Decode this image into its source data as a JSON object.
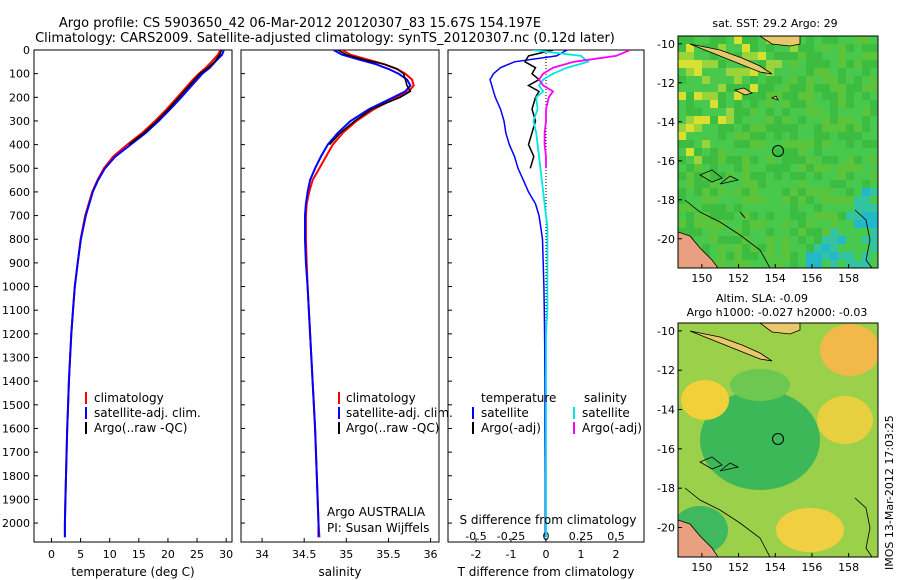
{
  "title_line1": "Argo profile: CS 5903650_42 06-Mar-2012 20120307_83 15.67S 154.197E",
  "title_line2": "Climatology: CARS2009. Satellite-adjusted climatology: synTS_20120307.nc (0.12d later)",
  "side_text": "IMOS 13-Mar-2012 17:03:25",
  "colors": {
    "climatology": "#ff0000",
    "satellite": "#0000ff",
    "argo": "#000000",
    "sal_satellite": "#00e5e5",
    "sal_argo": "#ff00ff"
  },
  "depth_axis": {
    "ticks": [
      "0",
      "100",
      "200",
      "300",
      "400",
      "500",
      "600",
      "700",
      "800",
      "900",
      "1000",
      "1100",
      "1200",
      "1300",
      "1400",
      "1500",
      "1600",
      "1700",
      "1800",
      "1900",
      "2000"
    ],
    "ylim": [
      0,
      2080
    ]
  },
  "panel_temp": {
    "xlabel": "temperature (deg C)",
    "xticks": [
      "0",
      "5",
      "10",
      "15",
      "20",
      "25",
      "30"
    ],
    "xlim": [
      -3,
      31
    ],
    "legend": [
      "climatology",
      "satellite-adj. clim.",
      "Argo(..raw -QC)"
    ],
    "chart_data": {
      "type": "line",
      "depth": [
        0,
        20,
        50,
        75,
        100,
        125,
        150,
        175,
        200,
        250,
        300,
        350,
        400,
        450,
        500,
        550,
        600,
        700,
        800,
        900,
        1000,
        1100,
        1200,
        1300,
        1400,
        1500,
        1600,
        1700,
        1800,
        1900,
        2000,
        2060
      ],
      "series": [
        {
          "name": "climatology",
          "values": [
            29.0,
            28.6,
            27.5,
            26.5,
            25.3,
            24.3,
            23.4,
            22.5,
            21.6,
            19.8,
            17.8,
            15.6,
            13.0,
            10.6,
            9.0,
            7.9,
            7.0,
            5.8,
            5.0,
            4.5,
            4.0,
            3.7,
            3.4,
            3.2,
            3.0,
            2.85,
            2.7,
            2.6,
            2.5,
            2.4,
            2.3,
            2.3
          ]
        },
        {
          "name": "satellite-adj. clim.",
          "values": [
            29.6,
            29.3,
            28.1,
            27.2,
            25.9,
            25.0,
            24.1,
            23.2,
            22.3,
            20.4,
            18.4,
            16.2,
            13.6,
            11.0,
            9.2,
            8.0,
            7.1,
            5.9,
            5.05,
            4.5,
            4.0,
            3.7,
            3.4,
            3.2,
            3.0,
            2.85,
            2.7,
            2.6,
            2.5,
            2.4,
            2.3,
            2.3
          ]
        },
        {
          "name": "Argo(..raw -QC)",
          "values": [
            29.2,
            28.9,
            28.0,
            26.9,
            25.5,
            24.6,
            23.7,
            22.8,
            21.9,
            20.1,
            18.1,
            15.9,
            13.3,
            null,
            null,
            null,
            null,
            null,
            null,
            null,
            null,
            null,
            null,
            null,
            null,
            null,
            null,
            null,
            null,
            null,
            null,
            null
          ]
        }
      ]
    }
  },
  "panel_sal": {
    "xlabel": "salinity",
    "xticks": [
      "34",
      "34.5",
      "35",
      "35.5",
      "36"
    ],
    "xlim": [
      33.75,
      36.1
    ],
    "legend": [
      "climatology",
      "satellite-adj. clim.",
      "Argo(..raw -QC)"
    ],
    "annotation1": "Argo AUSTRALIA",
    "annotation2": "PI: Susan Wijffels",
    "chart_data": {
      "type": "line",
      "depth": [
        0,
        20,
        40,
        60,
        80,
        100,
        125,
        150,
        175,
        200,
        250,
        300,
        350,
        400,
        450,
        500,
        550,
        600,
        650,
        700,
        800,
        900,
        1000,
        1200,
        1400,
        1600,
        1800,
        2000,
        2060
      ],
      "series": [
        {
          "name": "climatology",
          "values": [
            34.95,
            35.05,
            35.25,
            35.45,
            35.6,
            35.7,
            35.78,
            35.8,
            35.74,
            35.6,
            35.33,
            35.12,
            34.96,
            34.84,
            34.76,
            34.68,
            34.6,
            34.56,
            34.53,
            34.52,
            34.52,
            34.53,
            34.54,
            34.57,
            34.6,
            34.63,
            34.65,
            34.67,
            34.68
          ]
        },
        {
          "name": "satellite-adj. clim.",
          "values": [
            34.85,
            34.95,
            35.15,
            35.35,
            35.5,
            35.62,
            35.72,
            35.76,
            35.7,
            35.56,
            35.27,
            35.05,
            34.9,
            34.78,
            34.7,
            34.63,
            34.57,
            34.54,
            34.52,
            34.51,
            34.51,
            34.52,
            34.54,
            34.57,
            34.6,
            34.63,
            34.65,
            34.67,
            34.67
          ]
        },
        {
          "name": "Argo(..raw -QC)",
          "values": [
            34.9,
            35.0,
            35.2,
            35.45,
            35.6,
            35.68,
            35.7,
            35.72,
            35.76,
            35.64,
            35.3,
            35.1,
            34.93,
            34.8,
            null,
            null,
            null,
            null,
            null,
            null,
            null,
            null,
            null,
            null,
            null,
            null,
            null,
            null,
            null
          ]
        }
      ]
    }
  },
  "panel_diff": {
    "xlabel": "T difference from climatology",
    "s_label": "S difference from climatology",
    "xticks_t": [
      "-2",
      "-1",
      "0",
      "1",
      "2"
    ],
    "xticks_s": [
      "-0.5",
      "-0.25",
      "0",
      "0.25",
      "0.5"
    ],
    "xlim": [
      -2.8,
      2.8
    ],
    "legend_t_title": "temperature",
    "legend_s_title": "salinity",
    "legend_t": [
      "satellite",
      "Argo(-adj)"
    ],
    "legend_s": [
      "satellite",
      "Argo(-adj)"
    ],
    "chart_data": {
      "type": "line",
      "depth": [
        0,
        25,
        50,
        75,
        100,
        125,
        150,
        175,
        200,
        250,
        300,
        350,
        400,
        450,
        500,
        550,
        600,
        650,
        700,
        750,
        800,
        900,
        1000,
        1100,
        1200,
        1400,
        1600,
        1800,
        2000,
        2060
      ],
      "series": [
        {
          "name": "T satellite",
          "values": [
            0.6,
            0.3,
            -0.9,
            -1.3,
            -1.5,
            -1.6,
            -1.55,
            -1.5,
            -1.45,
            -1.3,
            -1.2,
            -1.15,
            -1.05,
            -0.9,
            -0.8,
            -0.65,
            -0.5,
            -0.3,
            -0.2,
            -0.15,
            -0.1,
            -0.08,
            -0.06,
            -0.05,
            -0.04,
            -0.03,
            -0.03,
            -0.02,
            -0.02,
            -0.02
          ]
        },
        {
          "name": "T Argo(-adj)",
          "values": [
            0.2,
            -0.5,
            -0.6,
            -0.3,
            -0.4,
            -0.2,
            -0.5,
            -0.2,
            -0.3,
            -0.4,
            -0.3,
            -0.4,
            -0.5,
            -0.35,
            -0.45,
            null,
            null,
            null,
            null,
            null,
            null,
            null,
            null,
            null,
            null,
            null,
            null,
            null,
            null,
            null
          ]
        },
        {
          "name": "S satellite",
          "values": [
            -0.1,
            0.25,
            0.3,
            0.15,
            0.05,
            -0.02,
            -0.05,
            -0.02,
            -0.07,
            -0.06,
            -0.09,
            -0.07,
            -0.06,
            -0.05,
            -0.04,
            -0.03,
            -0.02,
            -0.01,
            0.0,
            0.01,
            0.01,
            0.01,
            0.01,
            0.01,
            0.0,
            0.0,
            0.0,
            0.0,
            0.0,
            0.0
          ]
        },
        {
          "name": "S Argo(-adj)",
          "values": [
            0.6,
            0.5,
            0.2,
            0.05,
            -0.02,
            -0.05,
            -0.02,
            0.05,
            0.02,
            0.0,
            0.0,
            -0.01,
            -0.01,
            0.0,
            0.0,
            null,
            null,
            null,
            null,
            null,
            null,
            null,
            null,
            null,
            null,
            null,
            null,
            null,
            null,
            null
          ]
        }
      ]
    }
  },
  "map_sst": {
    "title": "sat. SST: 29.2 Argo: 29",
    "xticks": [
      "150",
      "152",
      "154",
      "156",
      "158"
    ],
    "yticks": [
      "-10",
      "-12",
      "-14",
      "-16",
      "-18",
      "-20"
    ]
  },
  "map_sla": {
    "title1": "Altim. SLA: -0.09",
    "title2": "Argo h1000: -0.027 h2000: -0.03",
    "xticks": [
      "150",
      "152",
      "154",
      "156",
      "158"
    ],
    "yticks": [
      "-10",
      "-12",
      "-14",
      "-16",
      "-18",
      "-20"
    ]
  }
}
